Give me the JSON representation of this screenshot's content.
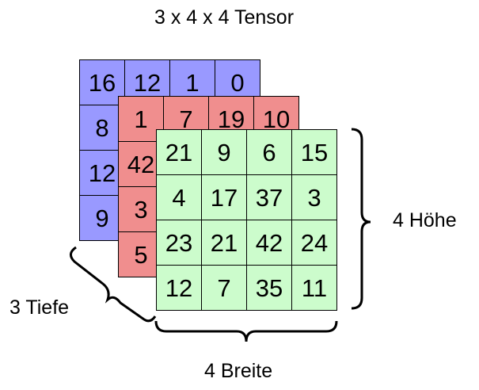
{
  "title": "3 x 4 x 4  Tensor",
  "colors": {
    "back_layer": "#9999ff",
    "middle_layer": "#f08e8e",
    "front_layer": "#ccfccc"
  },
  "layers": [
    {
      "name": "back",
      "rows": [
        [
          "16",
          "12",
          "1",
          "0"
        ],
        [
          "8",
          "",
          "",
          ""
        ],
        [
          "12",
          "",
          "",
          ""
        ],
        [
          "9",
          "",
          "",
          ""
        ]
      ]
    },
    {
      "name": "middle",
      "rows": [
        [
          "1",
          "7",
          "19",
          "10"
        ],
        [
          "42",
          "",
          "",
          ""
        ],
        [
          "3",
          "",
          "",
          ""
        ],
        [
          "5",
          "",
          "",
          ""
        ]
      ]
    },
    {
      "name": "front",
      "rows": [
        [
          "21",
          "9",
          "6",
          "15"
        ],
        [
          "4",
          "17",
          "37",
          "3"
        ],
        [
          "23",
          "21",
          "42",
          "24"
        ],
        [
          "12",
          "7",
          "35",
          "11"
        ]
      ]
    }
  ],
  "dimension_labels": {
    "depth": "3 Tiefe",
    "height": "4 Höhe",
    "width": "4 Breite"
  }
}
